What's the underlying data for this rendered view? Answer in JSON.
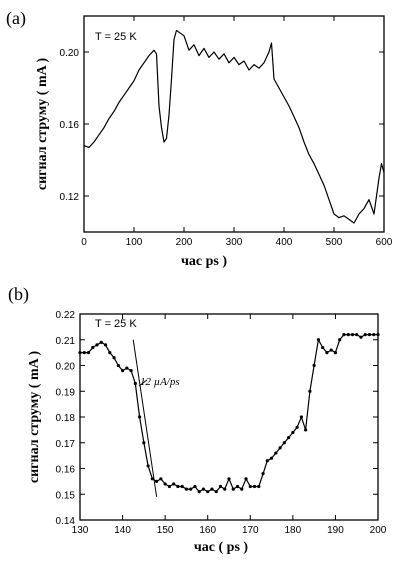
{
  "chart_data": [
    {
      "type": "line",
      "panel_label": "(a)",
      "annotation": "T = 25 K",
      "xlabel": "час   ps )",
      "ylabel": "сигнал струму  ( mA )",
      "xlim": [
        0,
        600
      ],
      "ylim": [
        0.1,
        0.22
      ],
      "xticks": [
        0,
        100,
        200,
        300,
        400,
        500,
        600
      ],
      "yticks": [
        0.12,
        0.16,
        0.2
      ],
      "grid": false,
      "series": [
        {
          "x": [
            0,
            10,
            20,
            30,
            40,
            50,
            60,
            70,
            80,
            90,
            100,
            110,
            120,
            130,
            140,
            145,
            150,
            155,
            160,
            165,
            170,
            175,
            180,
            185,
            190,
            200,
            210,
            220,
            230,
            240,
            250,
            260,
            270,
            280,
            290,
            300,
            310,
            320,
            330,
            340,
            350,
            360,
            370,
            375,
            380,
            390,
            400,
            410,
            420,
            430,
            440,
            450,
            460,
            470,
            480,
            490,
            500,
            510,
            520,
            530,
            540,
            550,
            560,
            570,
            580,
            590,
            595,
            600
          ],
          "y": [
            0.148,
            0.147,
            0.15,
            0.154,
            0.158,
            0.163,
            0.167,
            0.172,
            0.176,
            0.18,
            0.184,
            0.19,
            0.194,
            0.198,
            0.201,
            0.199,
            0.17,
            0.158,
            0.15,
            0.152,
            0.165,
            0.185,
            0.207,
            0.212,
            0.211,
            0.209,
            0.201,
            0.204,
            0.198,
            0.202,
            0.197,
            0.2,
            0.196,
            0.199,
            0.194,
            0.197,
            0.193,
            0.195,
            0.19,
            0.193,
            0.191,
            0.194,
            0.2,
            0.205,
            0.185,
            0.18,
            0.175,
            0.17,
            0.164,
            0.158,
            0.15,
            0.143,
            0.138,
            0.132,
            0.126,
            0.118,
            0.11,
            0.108,
            0.109,
            0.107,
            0.105,
            0.11,
            0.113,
            0.118,
            0.11,
            0.13,
            0.138,
            0.133
          ]
        }
      ]
    },
    {
      "type": "line",
      "panel_label": "(b)",
      "annotation": "T = 25 K",
      "fit_label": "12 µA/ps",
      "xlabel": "час   ( ps )",
      "ylabel": "сигнал струму  ( mA )",
      "xlim": [
        130,
        200
      ],
      "ylim": [
        0.14,
        0.22
      ],
      "xticks": [
        130,
        140,
        150,
        160,
        170,
        180,
        190,
        200
      ],
      "yticks": [
        0.14,
        0.15,
        0.16,
        0.17,
        0.18,
        0.19,
        0.2,
        0.21,
        0.22
      ],
      "grid": false,
      "fit_line": {
        "x": [
          142.5,
          148.0
        ],
        "y": [
          0.21,
          0.149
        ]
      },
      "series": [
        {
          "x": [
            130,
            131,
            132,
            133,
            134,
            135,
            136,
            137,
            138,
            139,
            140,
            141,
            142,
            143,
            144,
            145,
            146,
            147,
            148,
            149,
            150,
            151,
            152,
            153,
            154,
            155,
            156,
            157,
            158,
            159,
            160,
            161,
            162,
            163,
            164,
            165,
            166,
            167,
            168,
            169,
            170,
            171,
            172,
            173,
            174,
            175,
            176,
            177,
            178,
            179,
            180,
            181,
            182,
            183,
            184,
            185,
            186,
            187,
            188,
            189,
            190,
            191,
            192,
            193,
            194,
            195,
            196,
            197,
            198,
            199,
            200
          ],
          "y": [
            0.205,
            0.205,
            0.205,
            0.207,
            0.208,
            0.209,
            0.208,
            0.205,
            0.203,
            0.2,
            0.198,
            0.199,
            0.198,
            0.193,
            0.18,
            0.17,
            0.161,
            0.156,
            0.155,
            0.156,
            0.154,
            0.153,
            0.154,
            0.153,
            0.153,
            0.152,
            0.152,
            0.153,
            0.151,
            0.152,
            0.151,
            0.152,
            0.151,
            0.153,
            0.152,
            0.156,
            0.152,
            0.153,
            0.152,
            0.156,
            0.153,
            0.153,
            0.153,
            0.158,
            0.163,
            0.164,
            0.166,
            0.168,
            0.17,
            0.172,
            0.174,
            0.176,
            0.18,
            0.175,
            0.19,
            0.2,
            0.21,
            0.207,
            0.205,
            0.206,
            0.205,
            0.21,
            0.212,
            0.212,
            0.212,
            0.212,
            0.211,
            0.212,
            0.212,
            0.212,
            0.212
          ]
        }
      ]
    }
  ]
}
